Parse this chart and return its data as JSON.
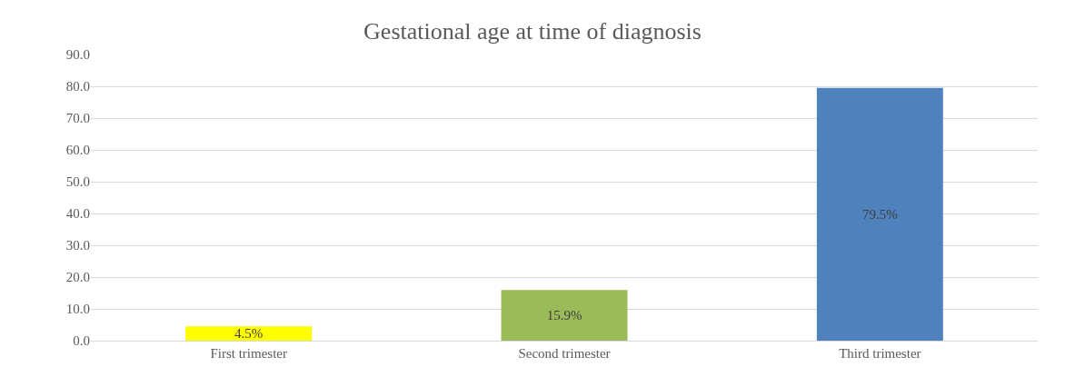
{
  "chart_data": {
    "type": "bar",
    "title": "Gestational age at time of diagnosis",
    "categories": [
      "First trimester",
      "Second trimester",
      "Third trimester"
    ],
    "values": [
      4.5,
      15.9,
      79.5
    ],
    "colors": [
      "#ffff00",
      "#9bbb59",
      "#4f81bd"
    ],
    "value_labels": [
      "4.5%",
      "15.9%",
      "79.5%"
    ],
    "ylim": [
      0,
      90
    ],
    "yticks": [
      {
        "value": 0,
        "label": "0.0"
      },
      {
        "value": 10,
        "label": "10.0"
      },
      {
        "value": 20,
        "label": "20.0"
      },
      {
        "value": 30,
        "label": "30.0"
      },
      {
        "value": 40,
        "label": "40.0"
      },
      {
        "value": 50,
        "label": "50.0"
      },
      {
        "value": 60,
        "label": "60.0"
      },
      {
        "value": 70,
        "label": "70.0"
      },
      {
        "value": 80,
        "label": "80.0"
      },
      {
        "value": 90,
        "label": "90.0"
      }
    ],
    "grid": "y"
  }
}
